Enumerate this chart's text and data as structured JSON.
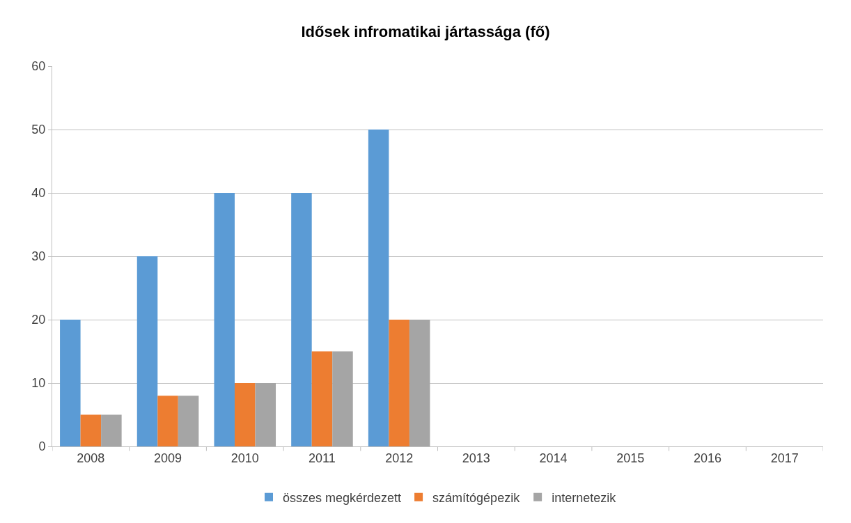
{
  "chart_data": {
    "type": "bar",
    "title": "Idősek infromatikai jártassága (fő)",
    "categories": [
      "2008",
      "2009",
      "2010",
      "2011",
      "2012",
      "2013",
      "2014",
      "2015",
      "2016",
      "2017"
    ],
    "series": [
      {
        "name": "összes megkérdezett",
        "color": "#5b9bd5",
        "values": [
          20,
          30,
          40,
          40,
          50,
          null,
          null,
          null,
          null,
          null
        ]
      },
      {
        "name": "számítógépezik",
        "color": "#ed7d31",
        "values": [
          5,
          8,
          10,
          15,
          20,
          null,
          null,
          null,
          null,
          null
        ]
      },
      {
        "name": "internetezik",
        "color": "#a5a5a5",
        "values": [
          5,
          8,
          10,
          15,
          20,
          null,
          null,
          null,
          null,
          null
        ]
      }
    ],
    "ylim": [
      0,
      60
    ],
    "yticks": [
      0,
      10,
      20,
      30,
      40,
      50,
      60
    ],
    "grid": "y",
    "legend": "bottom"
  }
}
